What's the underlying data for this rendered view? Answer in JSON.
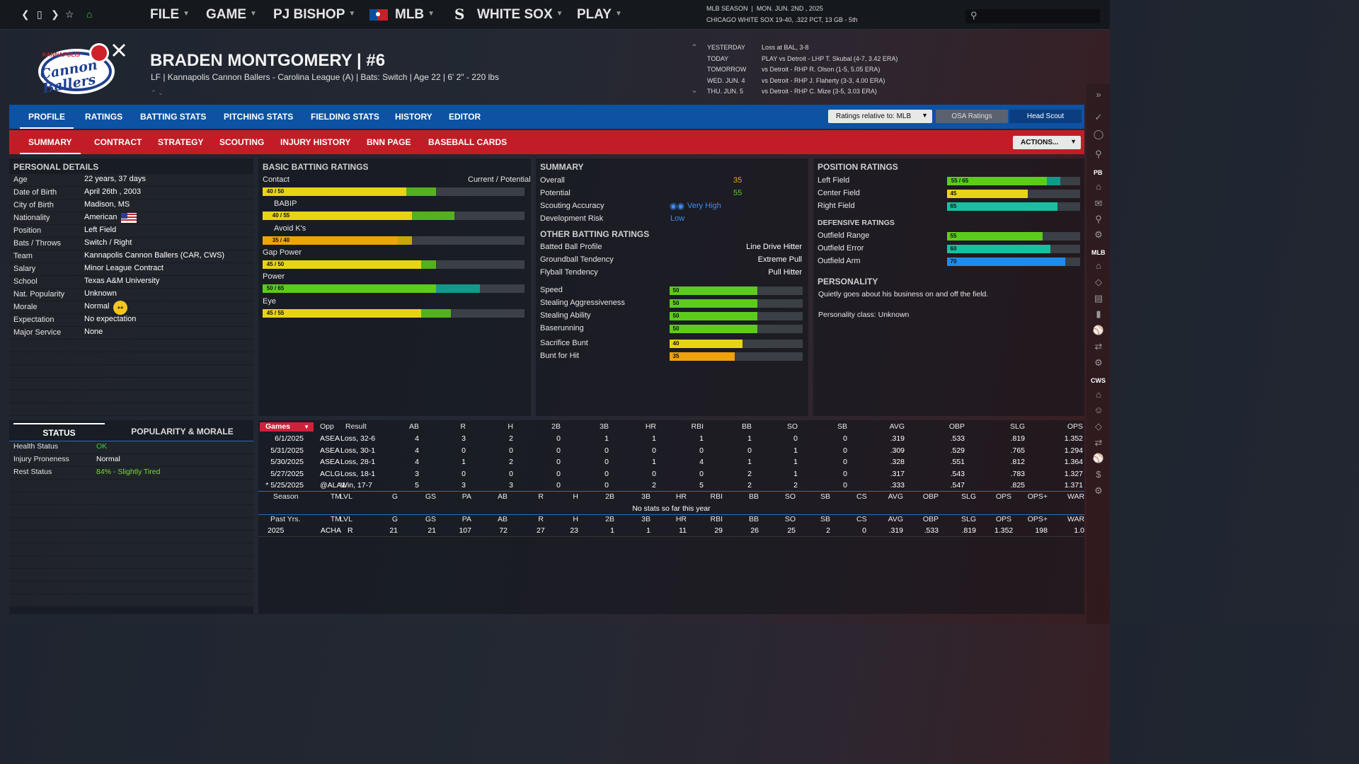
{
  "topnav": {
    "menus": [
      "FILE",
      "GAME",
      "PJ BISHOP",
      "MLB",
      "WHITE SOX",
      "PLAY"
    ],
    "season_label": "MLB SEASON",
    "season_date": "MON. JUN. 2ND , 2025",
    "team_status": "CHICAGO WHITE SOX  19-40, .322 PCT, 13 GB - 5th"
  },
  "schedule": [
    {
      "day": "YESTERDAY",
      "text": "Loss at BAL, 3-8"
    },
    {
      "day": "TODAY",
      "text": "PLAY vs Detroit - LHP T. Skubal (4-7, 3.42 ERA)"
    },
    {
      "day": "TOMORROW",
      "text": "vs Detroit - RHP R. Olson (1-5, 5.05 ERA)"
    },
    {
      "day": "WED. JUN. 4",
      "text": "vs Detroit - RHP J. Flaherty (3-3, 4.00 ERA)"
    },
    {
      "day": "THU. JUN. 5",
      "text": "vs Detroit - RHP C. Mize (3-5, 3.03 ERA)"
    }
  ],
  "player": {
    "name": "BRADEN MONTGOMERY  |  #6",
    "info": "LF | Kannapolis Cannon Ballers - Carolina League (A)  |  Bats: Switch  |  Age 22  |  6' 2\"  - 220 lbs",
    "logo_text": "Cannon Ballers",
    "logo_top": "KANNAPOLIS"
  },
  "tabs1": [
    "PROFILE",
    "RATINGS",
    "BATTING STATS",
    "PITCHING STATS",
    "FIELDING STATS",
    "HISTORY",
    "EDITOR"
  ],
  "tabs2": [
    "SUMMARY",
    "CONTRACT",
    "STRATEGY",
    "SCOUTING",
    "INJURY HISTORY",
    "BNN PAGE",
    "BASEBALL CARDS"
  ],
  "controls": {
    "ratings_relative": "Ratings relative to: MLB",
    "osa": "OSA Ratings",
    "head_scout": "Head Scout",
    "actions": "ACTIONS..."
  },
  "personal": {
    "title": "PERSONAL DETAILS",
    "rows": [
      {
        "label": "Age",
        "value": "22 years, 37 days"
      },
      {
        "label": "Date of Birth",
        "value": "April 26th , 2003"
      },
      {
        "label": "City of Birth",
        "value": "Madison, MS"
      },
      {
        "label": "Nationality",
        "value": "American"
      },
      {
        "label": "Position",
        "value": "Left Field"
      },
      {
        "label": "Bats / Throws",
        "value": "Switch / Right"
      },
      {
        "label": "Team",
        "value": "Kannapolis Cannon Ballers (CAR, CWS)"
      },
      {
        "label": "Salary",
        "value": "Minor League Contract"
      },
      {
        "label": "School",
        "value": "Texas A&M University"
      },
      {
        "label": "Nat. Popularity",
        "value": "Unknown"
      },
      {
        "label": "Morale",
        "value": "Normal"
      },
      {
        "label": "Expectation",
        "value": "No expectation"
      },
      {
        "label": "Major Service",
        "value": "None"
      }
    ]
  },
  "batting": {
    "title": "BASIC BATTING RATINGS",
    "cp_label": "Current / Potential",
    "rows": [
      {
        "label": "Contact",
        "badge": "40 / 50",
        "current": 40,
        "potential": 50,
        "color": "#e8d416",
        "pcolor": "#55b01e",
        "badge_color": "#e8d416"
      },
      {
        "label": "BABIP",
        "badge": "40 / 55",
        "current": 40,
        "potential": 55,
        "color": "#e8d416",
        "pcolor": "#55b01e",
        "badge_color": "#e8d416"
      },
      {
        "label": "Avoid K's",
        "badge": "35 / 40",
        "current": 35,
        "potential": 40,
        "color": "#f0a20c",
        "pcolor": "#c6a80e",
        "badge_color": "#f0a20c"
      },
      {
        "label": "Gap Power",
        "badge": "45 / 50",
        "current": 45,
        "potential": 50,
        "color": "#e8d416",
        "pcolor": "#55b01e",
        "badge_color": "#e8d416"
      },
      {
        "label": "Power",
        "badge": "50 / 65",
        "current": 50,
        "potential": 65,
        "color": "#5ccc1c",
        "pcolor": "#119a8a",
        "badge_color": "#5ccc1c"
      },
      {
        "label": "Eye",
        "badge": "45 / 55",
        "current": 45,
        "potential": 55,
        "color": "#e8d416",
        "pcolor": "#55b01e",
        "badge_color": "#e8d416"
      }
    ]
  },
  "summary": {
    "title": "SUMMARY",
    "overall_label": "Overall",
    "overall": "35",
    "potential_label": "Potential",
    "potential": "55",
    "accuracy_label": "Scouting Accuracy",
    "accuracy": "Very High",
    "risk_label": "Development Risk",
    "risk": "Low",
    "other_title": "OTHER BATTING RATINGS",
    "other": [
      {
        "label": "Batted Ball Profile",
        "value": "Line Drive Hitter"
      },
      {
        "label": "Groundball Tendency",
        "value": "Extreme Pull"
      },
      {
        "label": "Flyball Tendency",
        "value": "Pull Hitter"
      }
    ],
    "speed": [
      {
        "label": "Speed",
        "value": 50,
        "badge": "50",
        "color": "#5ccc1c"
      },
      {
        "label": "Stealing Aggressiveness",
        "value": 50,
        "badge": "50",
        "color": "#5ccc1c"
      },
      {
        "label": "Stealing Ability",
        "value": 50,
        "badge": "50",
        "color": "#5ccc1c"
      },
      {
        "label": "Baserunning",
        "value": 50,
        "badge": "50",
        "color": "#5ccc1c"
      },
      {
        "label": "Sacrifice Bunt",
        "value": 40,
        "badge": "40",
        "color": "#e8d416"
      },
      {
        "label": "Bunt for Hit",
        "value": 35,
        "badge": "35",
        "color": "#f0a20c"
      }
    ]
  },
  "position": {
    "title": "POSITION RATINGS",
    "rows": [
      {
        "label": "Left Field",
        "badge": "55 / 65",
        "current": 55,
        "potential": 65,
        "color": "#5ccc1c",
        "pcolor": "#119a8a",
        "badge_color": "#5ccc1c"
      },
      {
        "label": "Center Field",
        "badge": "45",
        "current": 45,
        "potential": 45,
        "color": "#e8d416",
        "pcolor": "#e8d416",
        "badge_color": "#e8d416"
      },
      {
        "label": "Right Field",
        "badge": "65",
        "current": 65,
        "potential": 65,
        "color": "#16c0a0",
        "pcolor": "#16c0a0",
        "badge_color": "#16c0a0"
      }
    ],
    "def_title": "DEFENSIVE RATINGS",
    "def": [
      {
        "label": "Outfield Range",
        "badge": "55",
        "current": 55,
        "color": "#5ccc1c",
        "badge_color": "#5ccc1c"
      },
      {
        "label": "Outfield Error",
        "badge": "60",
        "current": 60,
        "color": "#16c0a0",
        "badge_color": "#16c0a0"
      },
      {
        "label": "Outfield Arm",
        "badge": "70",
        "current": 70,
        "color": "#1c8cf0",
        "badge_color": "#1c8cf0"
      }
    ],
    "personality_title": "PERSONALITY",
    "personality_text": "Quietly goes about his business on and off the field.",
    "personality_class": "Personality class: Unknown"
  },
  "status": {
    "tab1": "STATUS",
    "tab2": "POPULARITY & MORALE",
    "rows": [
      {
        "label": "Health Status",
        "value": "OK",
        "color": "#3ccf3c"
      },
      {
        "label": "Injury Proneness",
        "value": "Normal",
        "color": "#ffffff"
      },
      {
        "label": "Rest Status",
        "value": "84% - Slightly Tired",
        "color": "#7ddc2a"
      }
    ]
  },
  "games": {
    "dropdown": "Games",
    "headers": [
      "Opp",
      "Result",
      "AB",
      "R",
      "H",
      "2B",
      "3B",
      "HR",
      "RBI",
      "BB",
      "SO",
      "SB",
      "AVG",
      "OBP",
      "SLG",
      "OPS"
    ],
    "rows": [
      [
        "6/1/2025",
        "ASEA",
        "Loss, 32-6",
        "4",
        "3",
        "2",
        "0",
        "1",
        "1",
        "1",
        "1",
        "0",
        "0",
        ".319",
        ".533",
        ".819",
        "1.352"
      ],
      [
        "5/31/2025",
        "ASEA",
        "Loss, 30-1",
        "4",
        "0",
        "0",
        "0",
        "0",
        "0",
        "0",
        "0",
        "1",
        "0",
        ".309",
        ".529",
        ".765",
        "1.294"
      ],
      [
        "5/30/2025",
        "ASEA",
        "Loss, 28-1",
        "4",
        "1",
        "2",
        "0",
        "0",
        "1",
        "4",
        "1",
        "1",
        "0",
        ".328",
        ".551",
        ".812",
        "1.364"
      ],
      [
        "5/27/2025",
        "ACLG",
        "Loss, 18-1",
        "3",
        "0",
        "0",
        "0",
        "0",
        "0",
        "0",
        "2",
        "1",
        "0",
        ".317",
        ".543",
        ".783",
        "1.327"
      ],
      [
        "* 5/25/2025",
        "@ALA1",
        "Win, 17-7",
        "5",
        "3",
        "3",
        "0",
        "0",
        "2",
        "5",
        "2",
        "2",
        "0",
        ".333",
        ".547",
        ".825",
        "1.371"
      ]
    ]
  },
  "season": {
    "headers": [
      "Season",
      "TM",
      "LVL",
      "G",
      "GS",
      "PA",
      "AB",
      "R",
      "H",
      "2B",
      "3B",
      "HR",
      "RBI",
      "BB",
      "SO",
      "SB",
      "CS",
      "AVG",
      "OBP",
      "SLG",
      "OPS",
      "OPS+",
      "WAR"
    ],
    "empty": "No stats so far this year"
  },
  "past": {
    "headers": [
      "Past Yrs.",
      "TM",
      "LVL",
      "G",
      "GS",
      "PA",
      "AB",
      "R",
      "H",
      "2B",
      "3B",
      "HR",
      "RBI",
      "BB",
      "SO",
      "SB",
      "CS",
      "AVG",
      "OBP",
      "SLG",
      "OPS",
      "OPS+",
      "WAR"
    ],
    "row": [
      "2025",
      "ACHA",
      "R",
      "21",
      "21",
      "107",
      "72",
      "27",
      "23",
      "1",
      "1",
      "11",
      "29",
      "26",
      "25",
      "2",
      "0",
      ".319",
      ".533",
      ".819",
      "1.352",
      "198",
      "1.0"
    ]
  },
  "sidebar": {
    "pb": "PB",
    "mlb": "MLB",
    "cws": "CWS"
  }
}
